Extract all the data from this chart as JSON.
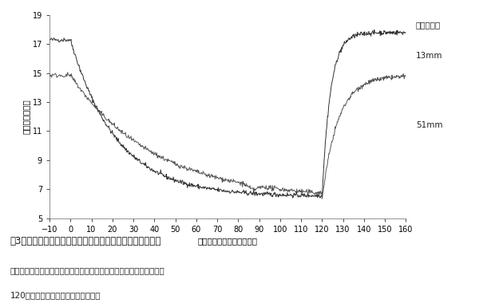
{
  "title": "嘰3　水位の上昇が二次通気組織中の酸素濃度に及ぼす影響",
  "caption_line1": "水位を０分に上昇させて湛水面上の二次通気組織と外界とを遷断し、",
  "caption_line2": "120分後に基準水位の高さに戻した。",
  "xlabel": "水位上昇後経過時間（分）",
  "ylabel": "酸素濃度（％）",
  "legend_header": "基準水位下",
  "legend_13": "13mm",
  "legend_51": "51mm",
  "xlim": [
    -10,
    160
  ],
  "ylim": [
    5,
    19
  ],
  "xticks": [
    -10,
    0,
    10,
    20,
    30,
    40,
    50,
    60,
    70,
    80,
    90,
    100,
    110,
    120,
    130,
    140,
    150,
    160
  ],
  "yticks": [
    5,
    7,
    9,
    11,
    13,
    15,
    17,
    19
  ],
  "color_13": "#1a1a1a",
  "color_51": "#444444",
  "bg_color": "#ffffff"
}
